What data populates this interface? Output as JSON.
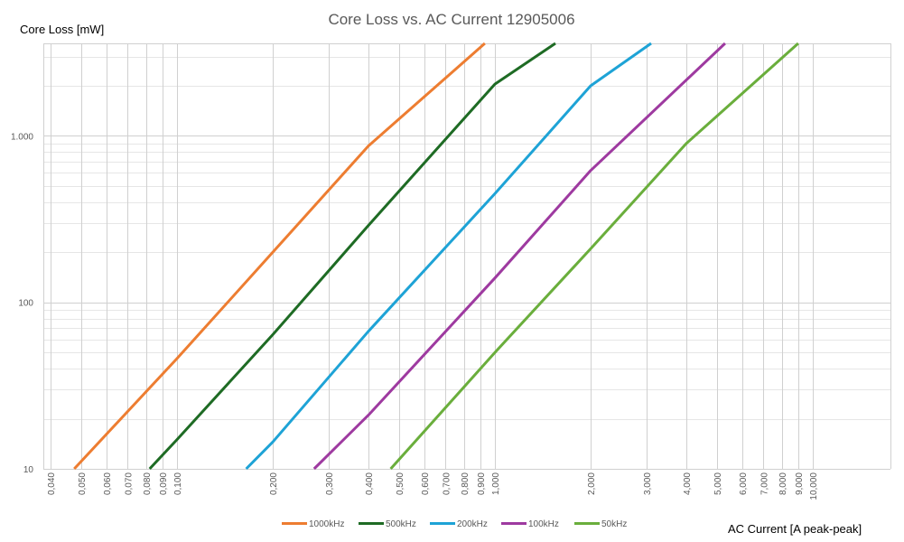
{
  "chart_data": {
    "type": "line",
    "title": "Core Loss vs. AC Current 12905006",
    "xlabel": "AC Current [A peak-peak]",
    "ylabel": "Core Loss [mW]",
    "x_scale": "log",
    "y_scale": "log",
    "xlim": [
      0.04,
      11
    ],
    "ylim": [
      10,
      3600
    ],
    "grid": true,
    "legend_position": "bottom",
    "x_ticks": [
      0.04,
      0.05,
      0.06,
      0.07,
      0.08,
      0.09,
      0.1,
      0.2,
      0.3,
      0.4,
      0.5,
      0.6,
      0.7,
      0.8,
      0.9,
      1,
      2,
      3,
      4,
      5,
      6,
      7,
      8,
      9,
      10
    ],
    "x_tick_labels": [
      "0,040",
      "0,050",
      "0,060",
      "0,070",
      "0,080",
      "0,090",
      "0,100",
      "0,200",
      "0,300",
      "0,400",
      "0,500",
      "0,600",
      "0,700",
      "0,800",
      "0,900",
      "1,000",
      "2,000",
      "3,000",
      "4,000",
      "5,000",
      "6,000",
      "7,000",
      "8,000",
      "9,000",
      "10,000"
    ],
    "y_ticks": [
      10,
      100,
      1000
    ],
    "y_tick_labels": [
      "10",
      "100",
      "1.000"
    ],
    "series": [
      {
        "name": "1000kHz",
        "color": "#ED7D31",
        "x": [
          0.0475,
          0.1,
          0.2,
          0.4,
          0.93
        ],
        "y": [
          10,
          46,
          200,
          870,
          3600
        ]
      },
      {
        "name": "500kHz",
        "color": "#1E6B24",
        "x": [
          0.082,
          0.1,
          0.2,
          0.4,
          1.0,
          1.55
        ],
        "y": [
          10,
          15,
          64,
          290,
          2050,
          3600
        ]
      },
      {
        "name": "200kHz",
        "color": "#1EA3D6",
        "x": [
          0.165,
          0.2,
          0.4,
          1.0,
          2.0,
          3.1
        ],
        "y": [
          10,
          14.5,
          67,
          450,
          2000,
          3600
        ]
      },
      {
        "name": "100kHz",
        "color": "#9E3AA0",
        "x": [
          0.27,
          0.4,
          1.0,
          2.0,
          5.3
        ],
        "y": [
          10,
          21,
          140,
          620,
          3600
        ]
      },
      {
        "name": "50kHz",
        "color": "#6AAE3C",
        "x": [
          0.47,
          1.0,
          2.0,
          4.0,
          9.0
        ],
        "y": [
          10,
          50,
          210,
          900,
          3600
        ]
      }
    ]
  }
}
